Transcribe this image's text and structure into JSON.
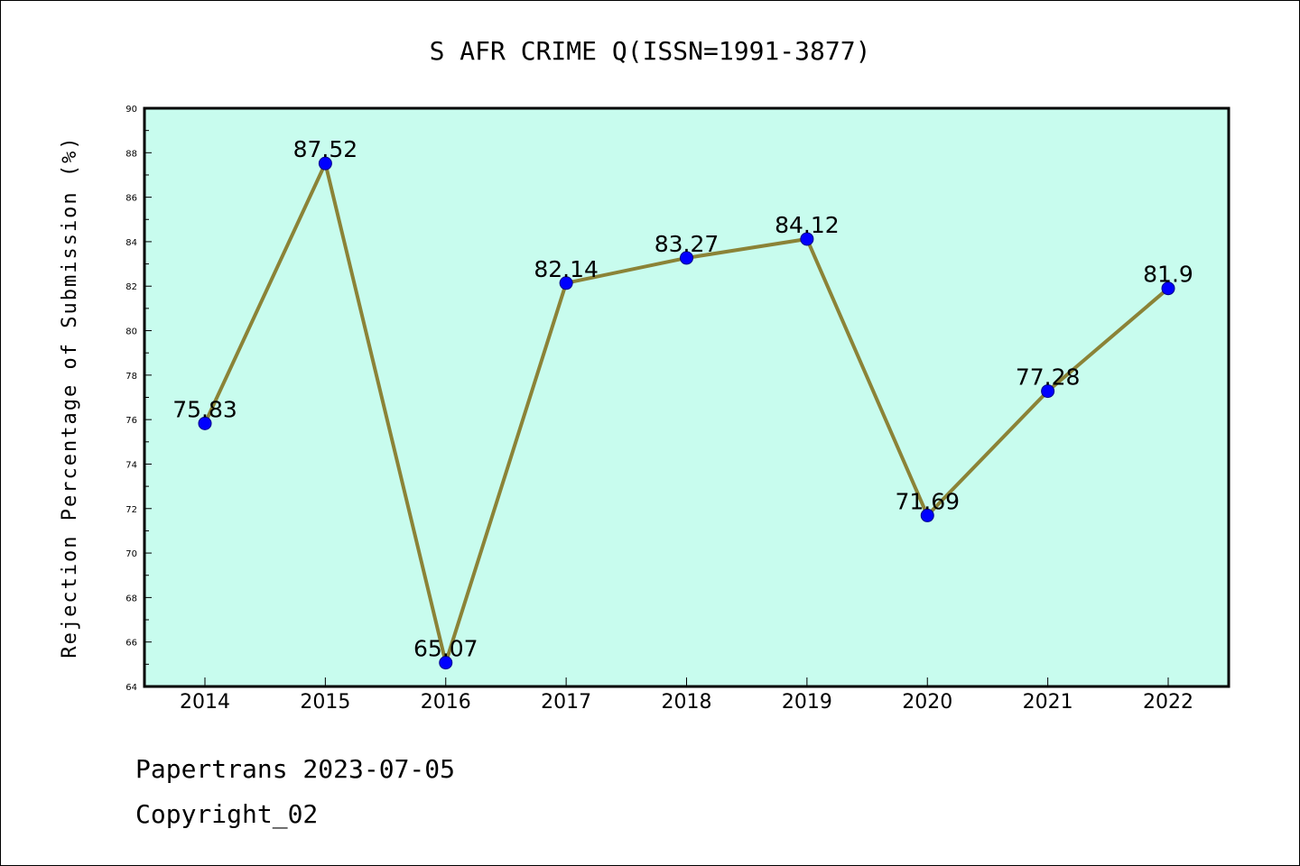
{
  "chart_data": {
    "type": "line",
    "title": "S AFR CRIME Q(ISSN=1991-3877)",
    "xlabel": "",
    "ylabel": "Rejection Percentage of Submission (%)",
    "x": [
      "2014",
      "2015",
      "2016",
      "2017",
      "2018",
      "2019",
      "2020",
      "2021",
      "2022"
    ],
    "series": [
      {
        "values": [
          75.83,
          87.52,
          65.07,
          82.14,
          83.27,
          84.12,
          71.69,
          77.28,
          81.9
        ],
        "labels": [
          "75.83",
          "87.52",
          "65.07",
          "82.14",
          "83.27",
          "84.12",
          "71.69",
          "77.28",
          "81.9"
        ]
      }
    ],
    "ylim": [
      64,
      90
    ],
    "yticks": [
      "64",
      "66",
      "68",
      "70",
      "72",
      "74",
      "76",
      "78",
      "80",
      "82",
      "84",
      "86",
      "88",
      "90"
    ],
    "grid": false,
    "colors": {
      "plot_background": "#c8fcee",
      "line": "#8b8337",
      "marker": "#0000ff"
    }
  },
  "footer": {
    "line1": "Papertrans 2023-07-05",
    "line2": "Copyright_02"
  }
}
